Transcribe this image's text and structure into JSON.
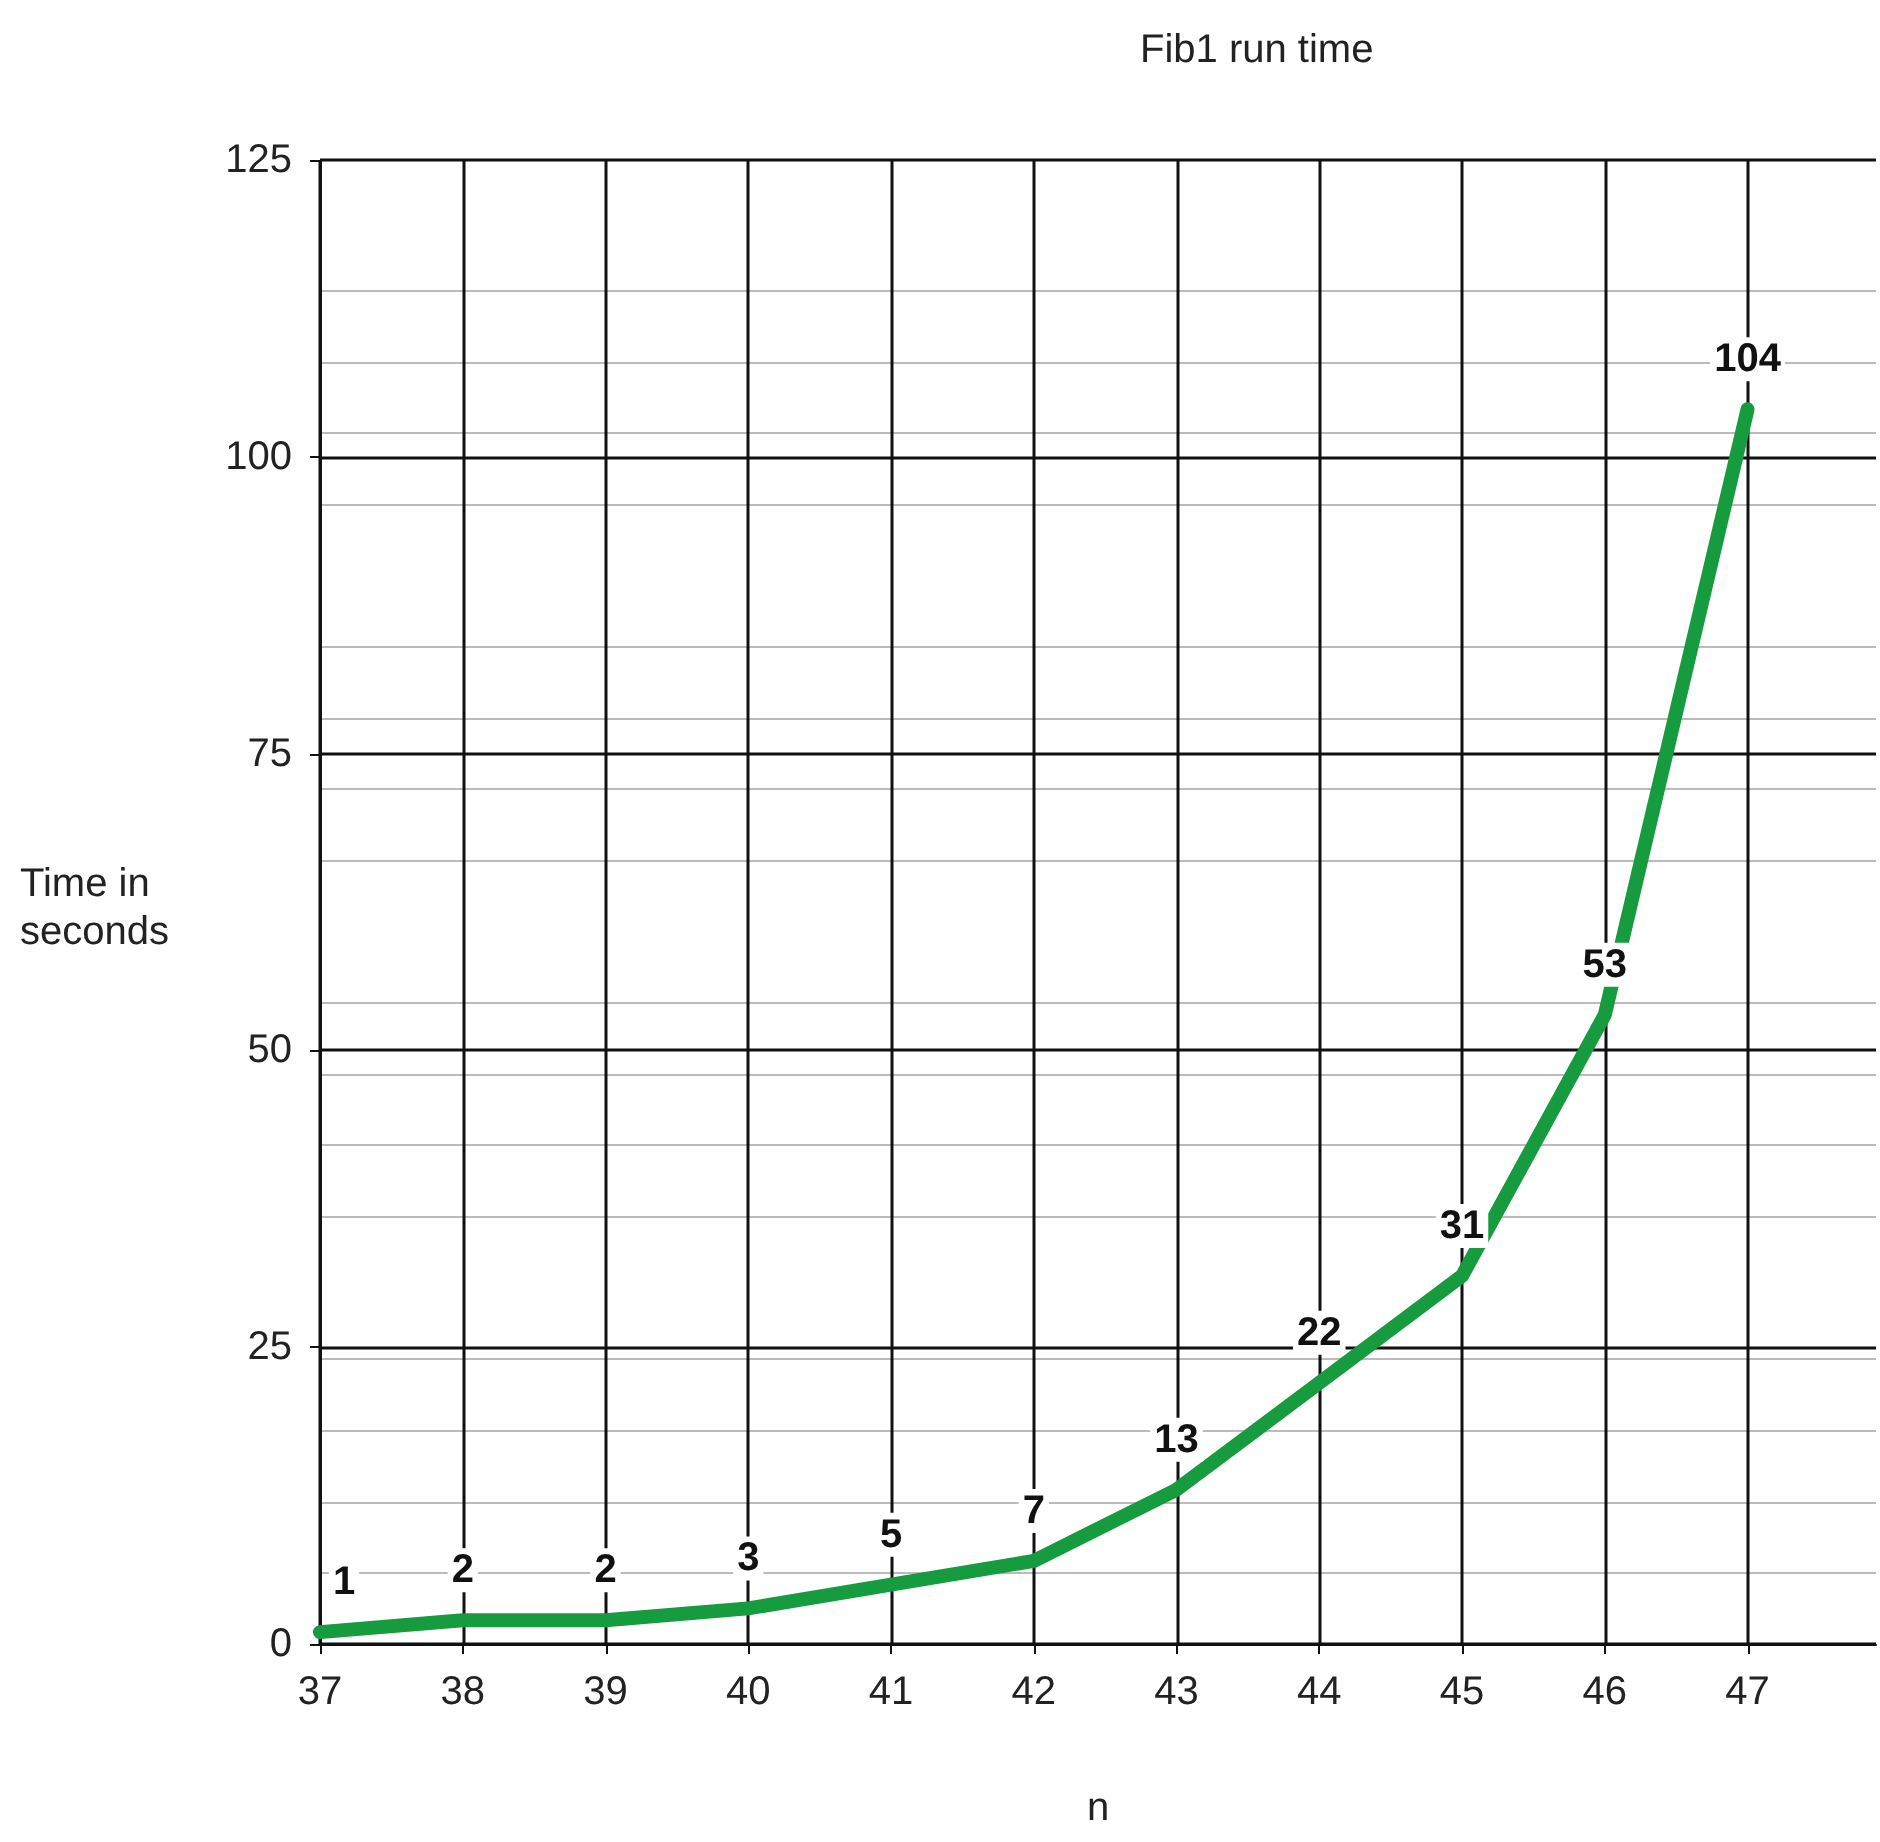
{
  "chart_data": {
    "type": "line",
    "title": "Fib1 run time",
    "xlabel": "n",
    "ylabel": "Time in seconds",
    "x": [
      37,
      38,
      39,
      40,
      41,
      42,
      43,
      44,
      45,
      46,
      47
    ],
    "series": [
      {
        "color": "#169b3e",
        "values": [
          1,
          2,
          2,
          3,
          5,
          7,
          13,
          22,
          31,
          53,
          104
        ]
      }
    ],
    "xlim": [
      37,
      47.9
    ],
    "xticks": [
      37,
      38,
      39,
      40,
      41,
      42,
      43,
      44,
      45,
      46,
      47
    ],
    "ylim": [
      0,
      125
    ],
    "yticks": [
      0,
      25,
      50,
      75,
      100,
      125
    ],
    "grid": true,
    "marker": "none",
    "line_style": "solid",
    "data_labels": true
  }
}
